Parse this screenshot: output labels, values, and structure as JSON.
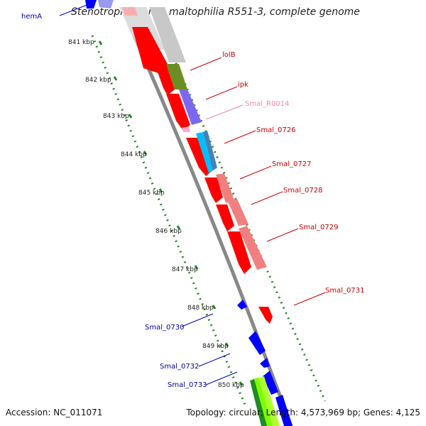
{
  "title": "Stenotrophomonas maltophilia R551-3, complete genome",
  "footer": {
    "accession_label": "Accession: NC_011071",
    "summary": "Topology: circular; Length: 4,573,969 bp; Genes: 4,125"
  },
  "kbp_ticks": [
    "841 kbp",
    "842 kbp",
    "843 kbp",
    "844 kbp",
    "845 kbp",
    "846 kbp",
    "847 kbp",
    "848 kbp",
    "849 kbp",
    "850 kbp"
  ],
  "gene_labels": {
    "hemA": "hemA",
    "lolB": "lolB",
    "ipk": "ipk",
    "smal_r0014": "Smal_R0014",
    "smal_0726": "Smal_0726",
    "smal_0727": "Smal_0727",
    "smal_0728": "Smal_0728",
    "smal_0729": "Smal_0729",
    "smal_0731": "Smal_0731",
    "smal_0730": "Smal_0730",
    "smal_0732": "Smal_0732",
    "smal_0733": "Smal_0733"
  },
  "colors": {
    "forward_strand": "#ff0000",
    "reverse_strand": "#0000ff",
    "backbone": "#888888",
    "ticks": "#228b22",
    "forward_label": "#cc0000",
    "reverse_label": "#000099",
    "rna_label": "#ee88aa"
  }
}
